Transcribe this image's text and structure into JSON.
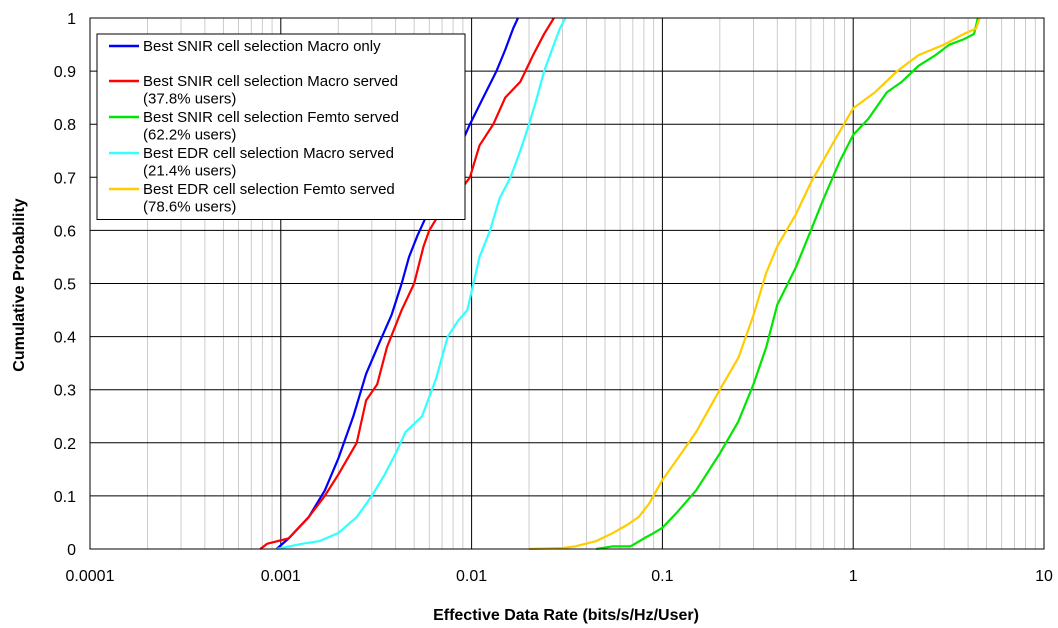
{
  "chart_data": {
    "type": "line",
    "title": "",
    "xlabel": "Effective Data Rate (bits/s/Hz/User)",
    "ylabel": "Cumulative Probability",
    "xscale": "log",
    "xlim": [
      0.0001,
      10
    ],
    "ylim": [
      0,
      1
    ],
    "x_ticks": [
      "0.0001",
      "0.001",
      "0.01",
      "0.1",
      "1",
      "10"
    ],
    "y_ticks": [
      "0",
      "0.1",
      "0.2",
      "0.3",
      "0.4",
      "0.5",
      "0.6",
      "0.7",
      "0.8",
      "0.9",
      "1"
    ],
    "grid": true,
    "legend_position": "top-left",
    "series": [
      {
        "name": "Best SNIR cell selection Macro only",
        "color": "#0000ff",
        "points": [
          [
            0.00095,
            0
          ],
          [
            0.0011,
            0.02
          ],
          [
            0.0014,
            0.06
          ],
          [
            0.0017,
            0.11
          ],
          [
            0.002,
            0.17
          ],
          [
            0.0024,
            0.25
          ],
          [
            0.0028,
            0.33
          ],
          [
            0.0033,
            0.39
          ],
          [
            0.0038,
            0.44
          ],
          [
            0.0043,
            0.5
          ],
          [
            0.0047,
            0.55
          ],
          [
            0.0052,
            0.59
          ],
          [
            0.0062,
            0.65
          ],
          [
            0.0072,
            0.7
          ],
          [
            0.0085,
            0.75
          ],
          [
            0.0098,
            0.8
          ],
          [
            0.0115,
            0.85
          ],
          [
            0.0135,
            0.9
          ],
          [
            0.015,
            0.94
          ],
          [
            0.0165,
            0.98
          ],
          [
            0.0175,
            1.0
          ]
        ]
      },
      {
        "name": "Best SNIR cell selection Macro served",
        "legend_lines": [
          "Best SNIR cell selection Macro served",
          "(37.8% users)"
        ],
        "color": "#ff0000",
        "points": [
          [
            0.00078,
            0
          ],
          [
            0.00085,
            0.01
          ],
          [
            0.0011,
            0.02
          ],
          [
            0.0014,
            0.06
          ],
          [
            0.0017,
            0.1
          ],
          [
            0.002,
            0.14
          ],
          [
            0.0025,
            0.2
          ],
          [
            0.0028,
            0.28
          ],
          [
            0.0032,
            0.31
          ],
          [
            0.0036,
            0.38
          ],
          [
            0.0043,
            0.45
          ],
          [
            0.005,
            0.5
          ],
          [
            0.0056,
            0.57
          ],
          [
            0.006,
            0.6
          ],
          [
            0.007,
            0.64
          ],
          [
            0.0085,
            0.67
          ],
          [
            0.0098,
            0.7
          ],
          [
            0.011,
            0.76
          ],
          [
            0.013,
            0.8
          ],
          [
            0.015,
            0.85
          ],
          [
            0.018,
            0.88
          ],
          [
            0.021,
            0.93
          ],
          [
            0.024,
            0.97
          ],
          [
            0.027,
            1.0
          ]
        ]
      },
      {
        "name": "Best SNIR cell selection Femto served",
        "legend_lines": [
          "Best SNIR cell selection Femto served",
          "(62.2% users)"
        ],
        "color": "#00e600",
        "points": [
          [
            0.045,
            0
          ],
          [
            0.055,
            0.005
          ],
          [
            0.068,
            0.005
          ],
          [
            0.072,
            0.01
          ],
          [
            0.08,
            0.02
          ],
          [
            0.09,
            0.03
          ],
          [
            0.1,
            0.04
          ],
          [
            0.12,
            0.07
          ],
          [
            0.15,
            0.11
          ],
          [
            0.2,
            0.18
          ],
          [
            0.25,
            0.24
          ],
          [
            0.3,
            0.31
          ],
          [
            0.35,
            0.38
          ],
          [
            0.4,
            0.46
          ],
          [
            0.5,
            0.53
          ],
          [
            0.6,
            0.6
          ],
          [
            0.7,
            0.66
          ],
          [
            0.85,
            0.73
          ],
          [
            1.0,
            0.78
          ],
          [
            1.2,
            0.81
          ],
          [
            1.5,
            0.86
          ],
          [
            1.8,
            0.88
          ],
          [
            2.2,
            0.91
          ],
          [
            2.7,
            0.93
          ],
          [
            3.2,
            0.95
          ],
          [
            3.8,
            0.96
          ],
          [
            4.3,
            0.97
          ],
          [
            4.5,
            1.0
          ]
        ]
      },
      {
        "name": "Best EDR cell selection Macro served",
        "legend_lines": [
          "Best EDR cell selection Macro served",
          "(21.4% users)"
        ],
        "color": "#33ffff",
        "points": [
          [
            0.00095,
            0
          ],
          [
            0.0013,
            0.01
          ],
          [
            0.0016,
            0.015
          ],
          [
            0.002,
            0.03
          ],
          [
            0.0025,
            0.06
          ],
          [
            0.003,
            0.1
          ],
          [
            0.0035,
            0.14
          ],
          [
            0.004,
            0.18
          ],
          [
            0.0045,
            0.22
          ],
          [
            0.0055,
            0.25
          ],
          [
            0.0065,
            0.32
          ],
          [
            0.0075,
            0.4
          ],
          [
            0.0085,
            0.43
          ],
          [
            0.0095,
            0.45
          ],
          [
            0.011,
            0.55
          ],
          [
            0.0125,
            0.6
          ],
          [
            0.014,
            0.66
          ],
          [
            0.016,
            0.7
          ],
          [
            0.018,
            0.75
          ],
          [
            0.02,
            0.8
          ],
          [
            0.022,
            0.85
          ],
          [
            0.024,
            0.9
          ],
          [
            0.027,
            0.95
          ],
          [
            0.029,
            0.98
          ],
          [
            0.031,
            1.0
          ]
        ]
      },
      {
        "name": "Best EDR cell selection Femto served",
        "legend_lines": [
          "Best EDR cell selection Femto served",
          "(78.6% users)"
        ],
        "color": "#ffcc00",
        "points": [
          [
            0.02,
            0
          ],
          [
            0.03,
            0.002
          ],
          [
            0.035,
            0.005
          ],
          [
            0.045,
            0.015
          ],
          [
            0.055,
            0.03
          ],
          [
            0.065,
            0.045
          ],
          [
            0.075,
            0.06
          ],
          [
            0.085,
            0.085
          ],
          [
            0.1,
            0.13
          ],
          [
            0.12,
            0.17
          ],
          [
            0.15,
            0.22
          ],
          [
            0.2,
            0.3
          ],
          [
            0.25,
            0.36
          ],
          [
            0.3,
            0.44
          ],
          [
            0.35,
            0.52
          ],
          [
            0.4,
            0.57
          ],
          [
            0.5,
            0.63
          ],
          [
            0.6,
            0.69
          ],
          [
            0.8,
            0.77
          ],
          [
            1.0,
            0.83
          ],
          [
            1.3,
            0.86
          ],
          [
            1.7,
            0.9
          ],
          [
            2.2,
            0.93
          ],
          [
            3.0,
            0.95
          ],
          [
            3.8,
            0.97
          ],
          [
            4.4,
            0.98
          ],
          [
            4.6,
            1.0
          ]
        ]
      }
    ]
  }
}
